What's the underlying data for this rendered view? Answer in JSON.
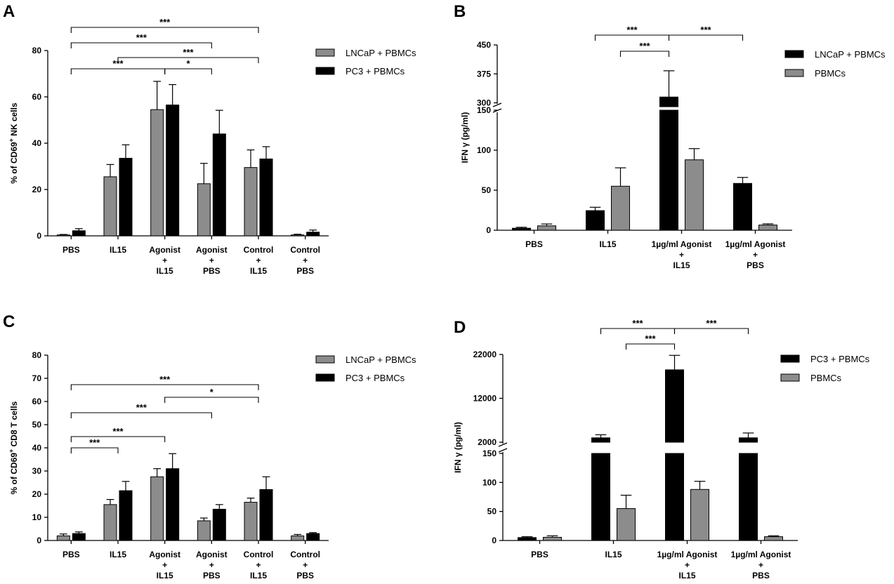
{
  "colors": {
    "grey": "#8c8c8c",
    "black": "#000000",
    "line": "#000000"
  },
  "chart_data": [
    {
      "id": "A",
      "panel_label": "A",
      "type": "bar",
      "ylabel_pre": "% of CD69",
      "ylabel_sup": "+",
      "ylabel_post": " NK cells",
      "ylim": [
        0,
        80
      ],
      "yticks": [
        0,
        20,
        40,
        60,
        80
      ],
      "categories": [
        [
          "PBS"
        ],
        [
          "IL15"
        ],
        [
          "Agonist",
          "+",
          "IL15"
        ],
        [
          "Agonist",
          "+",
          "PBS"
        ],
        [
          "Control",
          "+",
          "IL15"
        ],
        [
          "Control",
          "+",
          "PBS"
        ]
      ],
      "series": [
        {
          "name": "LNCaP + PBMCs",
          "color": "grey",
          "values": [
            0.4,
            25.5,
            54.5,
            22.5,
            29.5,
            0.4
          ],
          "errors": [
            0.2,
            5.3,
            12.2,
            8.8,
            7.6,
            0.3
          ]
        },
        {
          "name": "PC3 + PBMCs",
          "color": "black",
          "values": [
            2.2,
            33.5,
            56.5,
            44,
            33.2,
            1.6
          ],
          "errors": [
            0.9,
            5.8,
            8.8,
            10.2,
            5.3,
            0.9
          ]
        }
      ],
      "significance": [
        {
          "from": 0,
          "to": 4,
          "label": "***"
        },
        {
          "from": 0,
          "to": 3,
          "label": "***"
        },
        {
          "from": 1,
          "to": 4,
          "label": "***"
        },
        {
          "from": 0,
          "to": 2,
          "label": "***"
        },
        {
          "from": 2,
          "to": 3,
          "label": "*"
        }
      ]
    },
    {
      "id": "B",
      "panel_label": "B",
      "type": "bar",
      "ylabel_pre": "IFN γ (pg/ml)",
      "ylabel_sup": "",
      "ylabel_post": "",
      "axis_break": true,
      "lower_ylim": [
        0,
        150
      ],
      "lower_yticks": [
        0,
        50,
        100,
        150
      ],
      "upper_ylim": [
        290,
        450
      ],
      "upper_yticks": [
        300,
        375,
        450
      ],
      "categories": [
        [
          "PBS"
        ],
        [
          "IL15"
        ],
        [
          "1µg/ml Agonist",
          "+",
          "IL15"
        ],
        [
          "1µg/ml Agonist",
          "+",
          "PBS"
        ]
      ],
      "series": [
        {
          "name": "LNCaP + PBMCs",
          "color": "black",
          "values": [
            2.5,
            24.5,
            315,
            58.5
          ],
          "errors": [
            1.2,
            4.2,
            68,
            7.5
          ]
        },
        {
          "name": "PBMCs",
          "color": "grey",
          "values": [
            5.5,
            55,
            88,
            6.5
          ],
          "errors": [
            2.3,
            23,
            14,
            1.5
          ]
        }
      ],
      "significance": [
        {
          "from": 1,
          "to": 2,
          "label": "***"
        },
        {
          "from": 2,
          "to": 3,
          "label": "***"
        },
        {
          "from": 1,
          "to": 2,
          "label": "***"
        }
      ]
    },
    {
      "id": "C",
      "panel_label": "C",
      "type": "bar",
      "ylabel_pre": "% of CD69",
      "ylabel_sup": "+",
      "ylabel_post": " CD8 T cells",
      "ylim": [
        0,
        80
      ],
      "yticks": [
        0,
        10,
        20,
        30,
        40,
        50,
        60,
        70,
        80
      ],
      "categories": [
        [
          "PBS"
        ],
        [
          "IL15"
        ],
        [
          "Agonist",
          "+",
          "IL15"
        ],
        [
          "Agonist",
          "+",
          "PBS"
        ],
        [
          "Control",
          "+",
          "IL15"
        ],
        [
          "Control",
          "+",
          "PBS"
        ]
      ],
      "series": [
        {
          "name": "LNCaP + PBMCs",
          "color": "grey",
          "values": [
            2,
            15.5,
            27.5,
            8.5,
            16.5,
            2
          ],
          "errors": [
            0.8,
            2.2,
            3.5,
            1.2,
            1.8,
            0.6
          ]
        },
        {
          "name": "PC3 + PBMCs",
          "color": "black",
          "values": [
            3,
            21.5,
            31,
            13.5,
            22,
            3
          ],
          "errors": [
            0.7,
            4,
            6.5,
            2,
            5.5,
            0.4
          ]
        }
      ],
      "significance": [
        {
          "from": 0,
          "to": 4,
          "label": "***"
        },
        {
          "from": 2,
          "to": 4,
          "label": "*"
        },
        {
          "from": 0,
          "to": 3,
          "label": "***"
        },
        {
          "from": 0,
          "to": 2,
          "label": "***"
        },
        {
          "from": 0,
          "to": 1,
          "label": "***"
        }
      ]
    },
    {
      "id": "D",
      "panel_label": "D",
      "type": "bar",
      "ylabel_pre": "IFN γ (pg/ml)",
      "ylabel_sup": "",
      "ylabel_post": "",
      "axis_break": true,
      "lower_ylim": [
        0,
        150
      ],
      "lower_yticks": [
        0,
        50,
        100,
        150
      ],
      "upper_ylim": [
        2000,
        22000
      ],
      "upper_yticks": [
        2000,
        12000,
        22000
      ],
      "categories": [
        [
          "PBS"
        ],
        [
          "IL15"
        ],
        [
          "1µg/ml Agonist",
          "+",
          "IL15"
        ],
        [
          "1µg/ml Agonist",
          "+",
          "PBS"
        ]
      ],
      "series": [
        {
          "name": "PC3 + PBMCs",
          "color": "black",
          "values": [
            5,
            3000,
            18500,
            3000
          ],
          "errors": [
            1.5,
            700,
            3300,
            1100
          ]
        },
        {
          "name": "PBMCs",
          "color": "grey",
          "values": [
            5.5,
            55,
            88,
            6.5
          ],
          "errors": [
            2.5,
            23,
            14,
            1.5
          ]
        }
      ],
      "significance": [
        {
          "from": 1,
          "to": 2,
          "label": "***"
        },
        {
          "from": 2,
          "to": 3,
          "label": "***"
        },
        {
          "from": 1,
          "to": 2,
          "label": "***"
        }
      ]
    }
  ]
}
